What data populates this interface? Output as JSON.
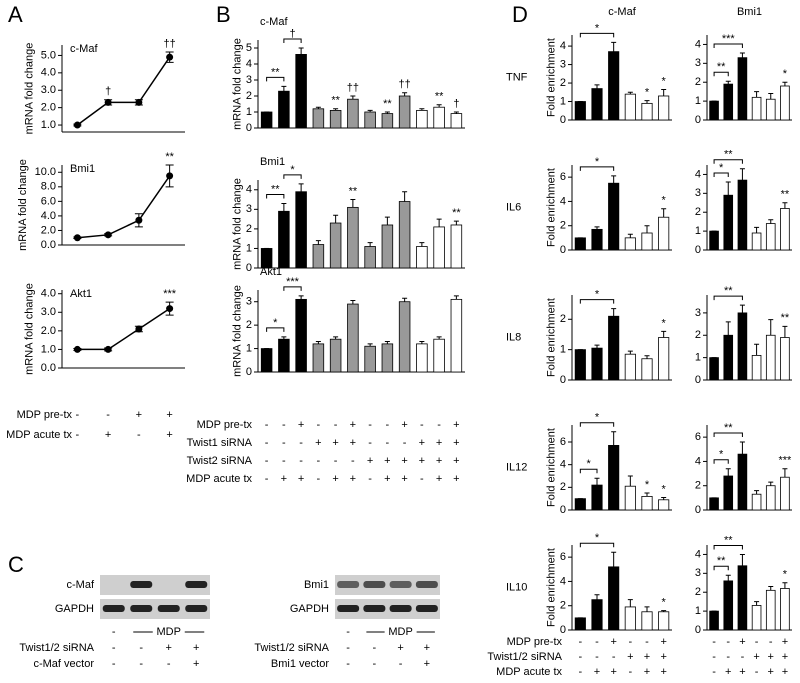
{
  "panel_labels": [
    "A",
    "B",
    "C",
    "D"
  ],
  "chart_data": [
    {
      "type": "line",
      "title": "c-Maf",
      "y_label": "mRNA fold change",
      "color": "#000000",
      "values": [
        1.0,
        2.3,
        2.3,
        4.9
      ],
      "errors": [
        0.05,
        0.15,
        0.15,
        0.3
      ],
      "marks": [
        null,
        "†",
        null,
        "††"
      ],
      "ylim": [
        0.6,
        5.6
      ],
      "yticks": [
        {
          "value": 1,
          "label": "1.0"
        },
        {
          "value": 2,
          "label": "2.0"
        },
        {
          "value": 3,
          "label": "3.0"
        },
        {
          "value": 4,
          "label": "4.0"
        },
        {
          "value": 5,
          "label": "5.0"
        }
      ]
    },
    {
      "type": "line",
      "title": "Bmi1",
      "y_label": "mRNA fold change",
      "color": "#000000",
      "values": [
        1.0,
        1.4,
        3.4,
        9.5
      ],
      "errors": [
        0.1,
        0.15,
        0.9,
        1.5
      ],
      "marks": [
        null,
        null,
        null,
        "**"
      ],
      "ylim": [
        0,
        11
      ],
      "yticks": [
        {
          "value": 0,
          "label": "0.0"
        },
        {
          "value": 2,
          "label": "2.0"
        },
        {
          "value": 4,
          "label": "4.0"
        },
        {
          "value": 6,
          "label": "6.0"
        },
        {
          "value": 8,
          "label": "8.0"
        },
        {
          "value": 10,
          "label": "10.0"
        }
      ]
    },
    {
      "type": "line",
      "title": "Akt1",
      "y_label": "mRNA fold change",
      "color": "#000000",
      "values": [
        1.0,
        1.0,
        2.1,
        3.2
      ],
      "errors": [
        0.05,
        0.08,
        0.15,
        0.35
      ],
      "marks": [
        null,
        null,
        null,
        "***"
      ],
      "ylim": [
        0,
        4.2
      ],
      "yticks": [
        {
          "value": 0,
          "label": "0.0"
        },
        {
          "value": 1,
          "label": "1.0"
        },
        {
          "value": 2,
          "label": "2.0"
        },
        {
          "value": 3,
          "label": "3.0"
        },
        {
          "value": 4,
          "label": "4.0"
        }
      ]
    },
    {
      "type": "bar",
      "title": "c-Maf",
      "y_label": "mRNA fold change",
      "colors": [
        "#000000",
        "#000000",
        "#000000",
        "#999999",
        "#999999",
        "#999999",
        "#999999",
        "#999999",
        "#999999",
        "#ffffff",
        "#ffffff",
        "#ffffff"
      ],
      "values": [
        1.0,
        2.3,
        4.6,
        1.2,
        1.1,
        1.8,
        1.0,
        0.9,
        2.0,
        1.1,
        1.3,
        0.9
      ],
      "errors": [
        0,
        0.3,
        0.4,
        0.1,
        0.1,
        0.2,
        0.1,
        0.1,
        0.2,
        0.1,
        0.15,
        0.1
      ],
      "marks": [
        null,
        null,
        null,
        null,
        "**",
        "††",
        null,
        "**",
        "††",
        null,
        "**",
        "†"
      ],
      "brackets": [
        {
          "text": "**",
          "from": 0,
          "to": 1
        },
        {
          "text": "†",
          "from": 1,
          "to": 2
        }
      ],
      "ylim": [
        0,
        5.5
      ],
      "yticks": [
        0,
        1,
        2,
        3,
        4,
        5
      ]
    },
    {
      "type": "bar",
      "title": "Bmi1",
      "y_label": "mRNA fold change",
      "colors": [
        "#000000",
        "#000000",
        "#000000",
        "#999999",
        "#999999",
        "#999999",
        "#999999",
        "#999999",
        "#999999",
        "#ffffff",
        "#ffffff",
        "#ffffff"
      ],
      "values": [
        1.0,
        2.9,
        3.9,
        1.2,
        2.3,
        3.1,
        1.1,
        2.2,
        3.4,
        1.1,
        2.1,
        2.2
      ],
      "errors": [
        0,
        0.4,
        0.4,
        0.2,
        0.4,
        0.4,
        0.2,
        0.4,
        0.5,
        0.2,
        0.4,
        0.2
      ],
      "marks": [
        null,
        null,
        null,
        null,
        null,
        "**",
        null,
        null,
        null,
        null,
        null,
        "**"
      ],
      "brackets": [
        {
          "text": "**",
          "from": 0,
          "to": 1
        },
        {
          "text": "*",
          "from": 1,
          "to": 2
        }
      ],
      "ylim": [
        0,
        4.5
      ],
      "yticks": [
        0,
        1,
        2,
        3,
        4
      ]
    },
    {
      "type": "bar",
      "title": "Akt1",
      "y_label": "mRNA fold change",
      "colors": [
        "#000000",
        "#000000",
        "#000000",
        "#999999",
        "#999999",
        "#999999",
        "#999999",
        "#999999",
        "#999999",
        "#ffffff",
        "#ffffff",
        "#ffffff"
      ],
      "values": [
        1.0,
        1.4,
        3.1,
        1.2,
        1.4,
        2.9,
        1.1,
        1.2,
        3.0,
        1.2,
        1.4,
        3.1
      ],
      "errors": [
        0,
        0.1,
        0.15,
        0.1,
        0.1,
        0.15,
        0.1,
        0.1,
        0.15,
        0.1,
        0.1,
        0.15
      ],
      "brackets": [
        {
          "text": "*",
          "from": 0,
          "to": 1
        },
        {
          "text": "***",
          "from": 1,
          "to": 2
        }
      ],
      "ylim": [
        0,
        3.5
      ],
      "yticks": [
        0,
        1,
        2,
        3
      ]
    },
    {
      "type": "bar",
      "title": "c-Maf",
      "row_label": "TNF",
      "y_label": "Fold enrichment",
      "colors": [
        "#000000",
        "#000000",
        "#000000",
        "#ffffff",
        "#ffffff",
        "#ffffff"
      ],
      "values": [
        1.0,
        1.7,
        3.7,
        1.4,
        0.9,
        1.3
      ],
      "errors": [
        0,
        0.2,
        0.5,
        0.1,
        0.15,
        0.35
      ],
      "marks": [
        null,
        null,
        null,
        null,
        "*",
        "*"
      ],
      "brackets": [
        {
          "text": "*",
          "from": 0,
          "to": 2
        }
      ],
      "ylim": [
        0,
        4.6
      ],
      "yticks": [
        0,
        1,
        2,
        3,
        4
      ]
    },
    {
      "type": "bar",
      "title": "Bmi1",
      "colors": [
        "#000000",
        "#000000",
        "#000000",
        "#ffffff",
        "#ffffff",
        "#ffffff"
      ],
      "values": [
        1.0,
        1.9,
        3.3,
        1.2,
        1.1,
        1.8
      ],
      "errors": [
        0,
        0.15,
        0.25,
        0.3,
        0.3,
        0.2
      ],
      "marks": [
        null,
        null,
        null,
        null,
        null,
        "*"
      ],
      "brackets": [
        {
          "text": "**",
          "from": 0,
          "to": 1
        },
        {
          "text": "***",
          "from": 0,
          "to": 2
        }
      ],
      "ylim": [
        0,
        4.5
      ],
      "yticks": [
        0,
        1,
        2,
        3,
        4
      ]
    },
    {
      "type": "bar",
      "row_label": "IL6",
      "y_label": "Fold enrichment",
      "colors": [
        "#000000",
        "#000000",
        "#000000",
        "#ffffff",
        "#ffffff",
        "#ffffff"
      ],
      "values": [
        1.0,
        1.7,
        5.5,
        1.0,
        1.4,
        2.7
      ],
      "errors": [
        0,
        0.2,
        0.6,
        0.3,
        0.6,
        0.7
      ],
      "marks": [
        null,
        null,
        null,
        null,
        null,
        "*"
      ],
      "brackets": [
        {
          "text": "*",
          "from": 0,
          "to": 2
        }
      ],
      "ylim": [
        0,
        7
      ],
      "yticks": [
        0,
        2,
        4,
        6
      ]
    },
    {
      "type": "bar",
      "colors": [
        "#000000",
        "#000000",
        "#000000",
        "#ffffff",
        "#ffffff",
        "#ffffff"
      ],
      "values": [
        1.0,
        2.9,
        3.7,
        0.9,
        1.4,
        2.2
      ],
      "errors": [
        0,
        0.7,
        0.6,
        0.3,
        0.2,
        0.3
      ],
      "marks": [
        null,
        null,
        null,
        null,
        null,
        "**"
      ],
      "brackets": [
        {
          "text": "*",
          "from": 0,
          "to": 1
        },
        {
          "text": "**",
          "from": 0,
          "to": 2
        }
      ],
      "ylim": [
        0,
        4.5
      ],
      "yticks": [
        0,
        1,
        2,
        3,
        4
      ]
    },
    {
      "type": "bar",
      "row_label": "IL8",
      "y_label": "Fold enrichment",
      "colors": [
        "#000000",
        "#000000",
        "#000000",
        "#ffffff",
        "#ffffff",
        "#ffffff"
      ],
      "values": [
        1.0,
        1.05,
        2.1,
        0.85,
        0.7,
        1.4
      ],
      "errors": [
        0,
        0.1,
        0.25,
        0.1,
        0.1,
        0.2
      ],
      "marks": [
        null,
        null,
        null,
        null,
        null,
        "*"
      ],
      "brackets": [
        {
          "text": "*",
          "from": 0,
          "to": 2
        }
      ],
      "ylim": [
        0,
        2.8
      ],
      "yticks": [
        0,
        1,
        2
      ]
    },
    {
      "type": "bar",
      "colors": [
        "#000000",
        "#000000",
        "#000000",
        "#ffffff",
        "#ffffff",
        "#ffffff"
      ],
      "values": [
        1.0,
        2.0,
        3.0,
        1.1,
        2.0,
        1.9
      ],
      "errors": [
        0,
        0.6,
        0.35,
        0.5,
        0.7,
        0.5
      ],
      "marks": [
        null,
        null,
        null,
        null,
        null,
        "**"
      ],
      "brackets": [
        {
          "text": "**",
          "from": 0,
          "to": 2
        }
      ],
      "ylim": [
        0,
        3.8
      ],
      "yticks": [
        0,
        1,
        2,
        3
      ]
    },
    {
      "type": "bar",
      "row_label": "IL12",
      "y_label": "Fold enrichment",
      "colors": [
        "#000000",
        "#000000",
        "#000000",
        "#ffffff",
        "#ffffff",
        "#ffffff"
      ],
      "values": [
        1.0,
        2.2,
        5.7,
        2.1,
        1.2,
        0.9
      ],
      "errors": [
        0,
        0.6,
        1.2,
        0.9,
        0.3,
        0.2
      ],
      "marks": [
        null,
        null,
        null,
        null,
        "*",
        "*"
      ],
      "brackets": [
        {
          "text": "*",
          "from": 0,
          "to": 1
        },
        {
          "text": "*",
          "from": 0,
          "to": 2
        }
      ],
      "ylim": [
        0,
        7.5
      ],
      "yticks": [
        0,
        2,
        4,
        6
      ]
    },
    {
      "type": "bar",
      "colors": [
        "#000000",
        "#000000",
        "#000000",
        "#ffffff",
        "#ffffff",
        "#ffffff"
      ],
      "values": [
        1.0,
        2.8,
        4.6,
        1.3,
        2.0,
        2.7
      ],
      "errors": [
        0,
        0.6,
        1.0,
        0.3,
        0.3,
        0.7
      ],
      "marks": [
        null,
        null,
        null,
        null,
        null,
        "***"
      ],
      "brackets": [
        {
          "text": "*",
          "from": 0,
          "to": 1
        },
        {
          "text": "**",
          "from": 0,
          "to": 2
        }
      ],
      "ylim": [
        0,
        7
      ],
      "yticks": [
        0,
        2,
        4,
        6
      ]
    },
    {
      "type": "bar",
      "row_label": "IL10",
      "y_label": "Fold enrichment",
      "colors": [
        "#000000",
        "#000000",
        "#000000",
        "#ffffff",
        "#ffffff",
        "#ffffff"
      ],
      "values": [
        1.0,
        2.5,
        5.2,
        1.9,
        1.5,
        1.5
      ],
      "errors": [
        0,
        0.4,
        1.2,
        0.6,
        0.4,
        0.1
      ],
      "marks": [
        null,
        null,
        null,
        null,
        null,
        "*"
      ],
      "brackets": [
        {
          "text": "*",
          "from": 0,
          "to": 2
        }
      ],
      "ylim": [
        0,
        7
      ],
      "yticks": [
        0,
        2,
        4,
        6
      ]
    },
    {
      "type": "bar",
      "colors": [
        "#000000",
        "#000000",
        "#000000",
        "#ffffff",
        "#ffffff",
        "#ffffff"
      ],
      "values": [
        1.0,
        2.6,
        3.4,
        1.3,
        2.1,
        2.2
      ],
      "errors": [
        0,
        0.3,
        0.6,
        0.2,
        0.2,
        0.3
      ],
      "marks": [
        null,
        null,
        null,
        null,
        null,
        "*"
      ],
      "brackets": [
        {
          "text": "**",
          "from": 0,
          "to": 1
        },
        {
          "text": "**",
          "from": 0,
          "to": 2
        }
      ],
      "ylim": [
        0,
        4.5
      ],
      "yticks": [
        0,
        1,
        2,
        3,
        4
      ]
    }
  ],
  "conditions": {
    "A": [
      {
        "name": "MDP pre-tx",
        "signs": [
          "-",
          "-",
          "+",
          "+"
        ]
      },
      {
        "name": "MDP acute tx",
        "signs": [
          "-",
          "+",
          "-",
          "+"
        ]
      }
    ],
    "B": [
      {
        "name": "MDP pre-tx",
        "signs": [
          "-",
          "-",
          "+",
          "-",
          "-",
          "+",
          "-",
          "-",
          "+",
          "-",
          "-",
          "+"
        ]
      },
      {
        "name": "Twist1 siRNA",
        "signs": [
          "-",
          "-",
          "-",
          "+",
          "+",
          "+",
          "-",
          "-",
          "-",
          "+",
          "+",
          "+"
        ]
      },
      {
        "name": "Twist2 siRNA",
        "signs": [
          "-",
          "-",
          "-",
          "-",
          "-",
          "-",
          "+",
          "+",
          "+",
          "+",
          "+",
          "+"
        ]
      },
      {
        "name": "MDP acute tx",
        "signs": [
          "-",
          "+",
          "+",
          "-",
          "+",
          "+",
          "-",
          "+",
          "+",
          "-",
          "+",
          "+"
        ]
      }
    ],
    "D": [
      {
        "name": "MDP pre-tx",
        "signs": [
          "-",
          "-",
          "+",
          "-",
          "-",
          "+",
          "-",
          "-",
          "+",
          "-",
          "-",
          "+"
        ]
      },
      {
        "name": "Twist1/2 siRNA",
        "signs": [
          "-",
          "-",
          "-",
          "+",
          "+",
          "+",
          "-",
          "-",
          "-",
          "+",
          "+",
          "+"
        ]
      },
      {
        "name": "MDP acute tx",
        "signs": [
          "-",
          "+",
          "+",
          "-",
          "+",
          "+",
          "-",
          "+",
          "+",
          "-",
          "+",
          "+"
        ]
      }
    ]
  },
  "blots": [
    {
      "bands": [
        "c-Maf",
        "GAPDH"
      ],
      "first": "-",
      "treatment": "MDP",
      "rows": [
        {
          "name": "Twist1/2 siRNA",
          "signs": [
            "-",
            "-",
            "+",
            "+"
          ]
        },
        {
          "name": "c-Maf vector",
          "signs": [
            "-",
            "-",
            "-",
            "+"
          ]
        }
      ]
    },
    {
      "bands": [
        "Bmi1",
        "GAPDH"
      ],
      "first": "-",
      "treatment": "MDP",
      "rows": [
        {
          "name": "Twist1/2 siRNA",
          "signs": [
            "-",
            "-",
            "+",
            "+"
          ]
        },
        {
          "name": "Bmi1 vector",
          "signs": [
            "-",
            "-",
            "-",
            "+"
          ]
        }
      ]
    }
  ]
}
